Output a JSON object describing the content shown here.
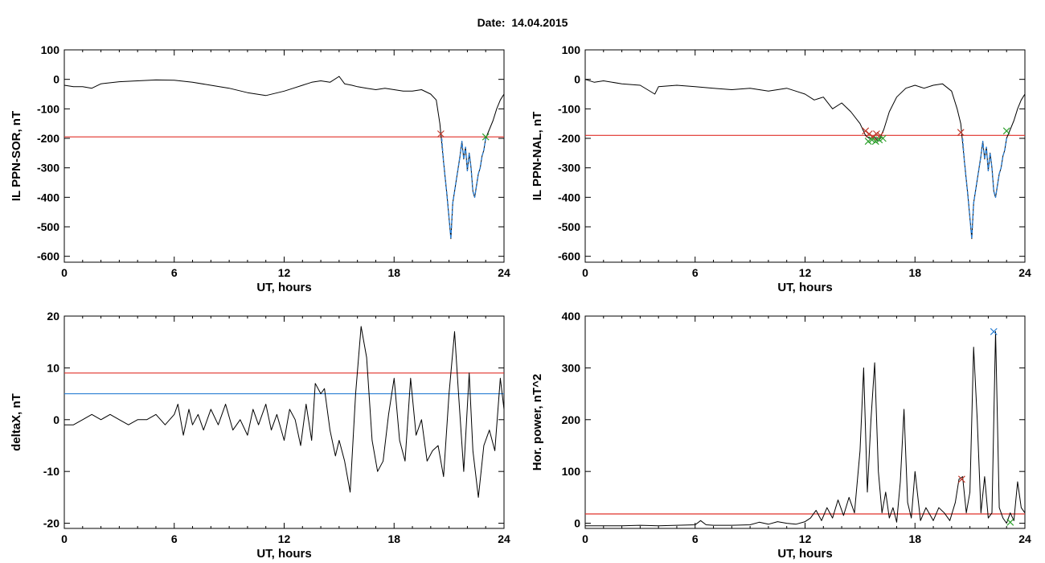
{
  "header": {
    "date_label": "Date:",
    "date_value": "14.04.2015"
  },
  "colors": {
    "series": "#000000",
    "threshold_red": "#e0302a",
    "threshold_blue": "#2b7fd4",
    "marker_green": "#2ca02c"
  },
  "chart_data": [
    {
      "id": "ppn-sor",
      "type": "line",
      "xlabel": "UT, hours",
      "ylabel": "IL PPN-SOR, nT",
      "xlim": [
        0,
        24
      ],
      "ylim": [
        -620,
        100
      ],
      "xticks": [
        0,
        6,
        12,
        18,
        24
      ],
      "yticks": [
        100,
        0,
        -100,
        -200,
        -300,
        -400,
        -500,
        -600
      ],
      "series": [
        {
          "color": "#000000",
          "x": [
            0,
            0.5,
            1,
            1.5,
            2,
            3,
            4,
            5,
            6,
            7,
            8,
            9,
            10,
            11,
            12,
            12.5,
            13,
            13.5,
            14,
            14.5,
            15,
            15.3,
            15.7,
            16,
            16.5,
            17,
            17.5,
            18,
            18.5,
            19,
            19.5,
            20,
            20.3,
            20.5,
            20.7,
            20.9,
            21.0,
            21.1,
            21.2,
            21.3,
            21.4,
            21.5,
            21.6,
            21.7,
            21.8,
            21.9,
            22.0,
            22.1,
            22.2,
            22.3,
            22.4,
            22.5,
            22.6,
            22.7,
            22.8,
            22.9,
            23.0,
            23.2,
            23.4,
            23.6,
            23.8,
            24
          ],
          "y": [
            -20,
            -25,
            -25,
            -30,
            -15,
            -8,
            -5,
            -2,
            -3,
            -10,
            -20,
            -30,
            -45,
            -55,
            -40,
            -30,
            -20,
            -10,
            -5,
            -10,
            10,
            -15,
            -20,
            -25,
            -30,
            -35,
            -30,
            -35,
            -40,
            -40,
            -35,
            -50,
            -70,
            -150,
            -280,
            -400,
            -470,
            -540,
            -420,
            -380,
            -340,
            -300,
            -260,
            -210,
            -270,
            -230,
            -310,
            -250,
            -300,
            -380,
            -400,
            -360,
            -320,
            -300,
            -260,
            -240,
            -200,
            -170,
            -140,
            -100,
            -70,
            -50
          ]
        },
        {
          "color": "#2b7fd4",
          "x": [
            20.6,
            20.7,
            20.9,
            21.0,
            21.1,
            21.2,
            21.3,
            21.4,
            21.5,
            21.6,
            21.7,
            21.8,
            21.9,
            22.0,
            22.1,
            22.2,
            22.3,
            22.4,
            22.5,
            22.6,
            22.7,
            22.8,
            22.9,
            23.0
          ],
          "y": [
            -200,
            -280,
            -400,
            -470,
            -540,
            -420,
            -380,
            -340,
            -300,
            -260,
            -210,
            -270,
            -230,
            -310,
            -250,
            -300,
            -380,
            -400,
            -360,
            -320,
            -300,
            -260,
            -240,
            -200
          ]
        }
      ],
      "thresholds": [
        {
          "y": -195,
          "color": "#e0302a"
        }
      ],
      "markers": [
        {
          "x": 20.55,
          "y": -185,
          "color": "#c0392b",
          "shape": "x"
        },
        {
          "x": 23.0,
          "y": -195,
          "color": "#2ca02c",
          "shape": "x"
        }
      ]
    },
    {
      "id": "ppn-nal",
      "type": "line",
      "xlabel": "UT, hours",
      "ylabel": "IL PPN-NAL, nT",
      "xlim": [
        0,
        24
      ],
      "ylim": [
        -620,
        100
      ],
      "xticks": [
        0,
        6,
        12,
        18,
        24
      ],
      "yticks": [
        100,
        0,
        -100,
        -200,
        -300,
        -400,
        -500,
        -600
      ],
      "series": [
        {
          "color": "#000000",
          "x": [
            0,
            0.5,
            1,
            2,
            3,
            3.8,
            4,
            5,
            6,
            7,
            8,
            9,
            10,
            11,
            11.5,
            12,
            12.5,
            13,
            13.5,
            14,
            14.5,
            15,
            15.3,
            15.5,
            15.8,
            16.0,
            16.3,
            16.6,
            17,
            17.5,
            18,
            18.5,
            19,
            19.5,
            20,
            20.3,
            20.5,
            20.7,
            20.9,
            21.0,
            21.1,
            21.2,
            21.3,
            21.4,
            21.5,
            21.6,
            21.7,
            21.8,
            21.9,
            22.0,
            22.1,
            22.2,
            22.3,
            22.4,
            22.5,
            22.6,
            22.7,
            22.8,
            22.9,
            23.0,
            23.2,
            23.4,
            23.6,
            23.8,
            24
          ],
          "y": [
            0,
            -10,
            -5,
            -15,
            -20,
            -50,
            -25,
            -20,
            -25,
            -30,
            -35,
            -30,
            -40,
            -30,
            -40,
            -50,
            -70,
            -60,
            -100,
            -80,
            -110,
            -150,
            -190,
            -200,
            -195,
            -210,
            -170,
            -110,
            -60,
            -30,
            -20,
            -30,
            -20,
            -15,
            -40,
            -100,
            -150,
            -280,
            -400,
            -470,
            -540,
            -420,
            -380,
            -340,
            -300,
            -260,
            -210,
            -270,
            -230,
            -310,
            -250,
            -300,
            -380,
            -400,
            -360,
            -320,
            -300,
            -260,
            -240,
            -200,
            -170,
            -140,
            -100,
            -70,
            -50
          ]
        },
        {
          "color": "#2b7fd4",
          "x": [
            20.6,
            20.7,
            20.9,
            21.0,
            21.1,
            21.2,
            21.3,
            21.4,
            21.5,
            21.6,
            21.7,
            21.8,
            21.9,
            22.0,
            22.1,
            22.2,
            22.3,
            22.4,
            22.5,
            22.6,
            22.7,
            22.8,
            22.9,
            23.0
          ],
          "y": [
            -200,
            -280,
            -400,
            -470,
            -540,
            -420,
            -380,
            -340,
            -300,
            -260,
            -210,
            -270,
            -230,
            -310,
            -250,
            -300,
            -380,
            -400,
            -360,
            -320,
            -300,
            -260,
            -240,
            -200
          ]
        }
      ],
      "thresholds": [
        {
          "y": -190,
          "color": "#e0302a"
        }
      ],
      "markers": [
        {
          "x": 15.3,
          "y": -175,
          "color": "#c0392b",
          "shape": "x"
        },
        {
          "x": 15.5,
          "y": -185,
          "color": "#c0392b",
          "shape": "x"
        },
        {
          "x": 15.7,
          "y": -195,
          "color": "#c0392b",
          "shape": "x"
        },
        {
          "x": 15.9,
          "y": -185,
          "color": "#c0392b",
          "shape": "x"
        },
        {
          "x": 16.1,
          "y": -190,
          "color": "#c0392b",
          "shape": "x"
        },
        {
          "x": 15.45,
          "y": -210,
          "color": "#2ca02c",
          "shape": "x"
        },
        {
          "x": 15.65,
          "y": -205,
          "color": "#2ca02c",
          "shape": "x"
        },
        {
          "x": 15.85,
          "y": -210,
          "color": "#2ca02c",
          "shape": "x"
        },
        {
          "x": 16.05,
          "y": -205,
          "color": "#2ca02c",
          "shape": "x"
        },
        {
          "x": 16.25,
          "y": -200,
          "color": "#2ca02c",
          "shape": "x"
        },
        {
          "x": 20.5,
          "y": -180,
          "color": "#c0392b",
          "shape": "x"
        },
        {
          "x": 23.0,
          "y": -175,
          "color": "#2ca02c",
          "shape": "x"
        }
      ]
    },
    {
      "id": "deltax",
      "type": "line",
      "xlabel": "UT, hours",
      "ylabel": "deltaX, nT",
      "xlim": [
        0,
        24
      ],
      "ylim": [
        -21,
        20
      ],
      "xticks": [
        0,
        6,
        12,
        18,
        24
      ],
      "yticks": [
        20,
        10,
        0,
        -10,
        -20
      ],
      "series": [
        {
          "color": "#000000",
          "x": [
            0,
            0.5,
            1,
            1.5,
            2,
            2.5,
            3,
            3.5,
            4,
            4.5,
            5,
            5.5,
            6,
            6.2,
            6.5,
            6.8,
            7,
            7.3,
            7.6,
            8,
            8.4,
            8.8,
            9.2,
            9.6,
            10,
            10.3,
            10.6,
            11,
            11.3,
            11.6,
            12,
            12.3,
            12.6,
            12.9,
            13.2,
            13.5,
            13.7,
            14,
            14.2,
            14.5,
            14.8,
            15,
            15.3,
            15.6,
            15.9,
            16.2,
            16.5,
            16.8,
            17.1,
            17.4,
            17.7,
            18,
            18.3,
            18.6,
            18.9,
            19.2,
            19.5,
            19.8,
            20.1,
            20.4,
            20.7,
            21,
            21.3,
            21.5,
            21.8,
            22.1,
            22.3,
            22.6,
            22.9,
            23.2,
            23.5,
            23.8,
            24
          ],
          "y": [
            -1,
            -1,
            0,
            1,
            0,
            1,
            0,
            -1,
            0,
            0,
            1,
            -1,
            1,
            3,
            -3,
            2,
            -1,
            1,
            -2,
            2,
            -1,
            3,
            -2,
            0,
            -3,
            2,
            -1,
            3,
            -2,
            1,
            -4,
            2,
            0,
            -5,
            3,
            -4,
            7,
            5,
            6,
            -2,
            -7,
            -4,
            -8,
            -14,
            5,
            18,
            12,
            -4,
            -10,
            -8,
            1,
            8,
            -4,
            -8,
            8,
            -3,
            0,
            -8,
            -6,
            -5,
            -11,
            5,
            17,
            6,
            -10,
            9,
            -6,
            -15,
            -5,
            -2,
            -6,
            8,
            2
          ]
        }
      ],
      "thresholds": [
        {
          "y": 9,
          "color": "#e0302a"
        },
        {
          "y": 5,
          "color": "#2b7fd4"
        }
      ],
      "markers": []
    },
    {
      "id": "hor-power",
      "type": "line",
      "xlabel": "UT, hours",
      "ylabel": "Hor. power, nT^2",
      "xlim": [
        0,
        24
      ],
      "ylim": [
        -10,
        400
      ],
      "xticks": [
        0,
        6,
        12,
        18,
        24
      ],
      "yticks": [
        400,
        300,
        200,
        100,
        0
      ],
      "series": [
        {
          "color": "#000000",
          "x": [
            0,
            1,
            2,
            3,
            4,
            5,
            6,
            6.3,
            6.6,
            7,
            8,
            9,
            9.5,
            10,
            10.5,
            11,
            11.5,
            12,
            12.3,
            12.6,
            12.9,
            13.2,
            13.5,
            13.8,
            14.1,
            14.4,
            14.7,
            15.0,
            15.2,
            15.4,
            15.6,
            15.8,
            16.0,
            16.2,
            16.4,
            16.6,
            16.8,
            17.0,
            17.2,
            17.4,
            17.6,
            17.8,
            18.0,
            18.3,
            18.6,
            19.0,
            19.3,
            19.6,
            19.9,
            20.2,
            20.4,
            20.6,
            20.8,
            21.0,
            21.2,
            21.4,
            21.6,
            21.8,
            22.0,
            22.2,
            22.4,
            22.6,
            22.8,
            23.0,
            23.2,
            23.4,
            23.6,
            23.8,
            24
          ],
          "y": [
            -5,
            -5,
            -5,
            -4,
            -5,
            -4,
            -3,
            5,
            -3,
            -4,
            -4,
            -3,
            2,
            -2,
            3,
            0,
            -2,
            3,
            10,
            25,
            5,
            30,
            10,
            45,
            15,
            50,
            20,
            140,
            300,
            60,
            200,
            310,
            100,
            20,
            60,
            10,
            30,
            2,
            80,
            220,
            40,
            10,
            100,
            5,
            30,
            5,
            30,
            20,
            5,
            40,
            85,
            90,
            20,
            60,
            340,
            200,
            20,
            90,
            10,
            20,
            370,
            30,
            10,
            0,
            20,
            5,
            80,
            30,
            20
          ]
        }
      ],
      "thresholds": [
        {
          "y": 18,
          "color": "#e0302a"
        }
      ],
      "markers": [
        {
          "x": 20.55,
          "y": 85,
          "color": "#c0392b",
          "shape": "x"
        },
        {
          "x": 22.3,
          "y": 370,
          "color": "#2b7fd4",
          "shape": "x"
        },
        {
          "x": 23.2,
          "y": 2,
          "color": "#2ca02c",
          "shape": "x"
        }
      ]
    }
  ]
}
